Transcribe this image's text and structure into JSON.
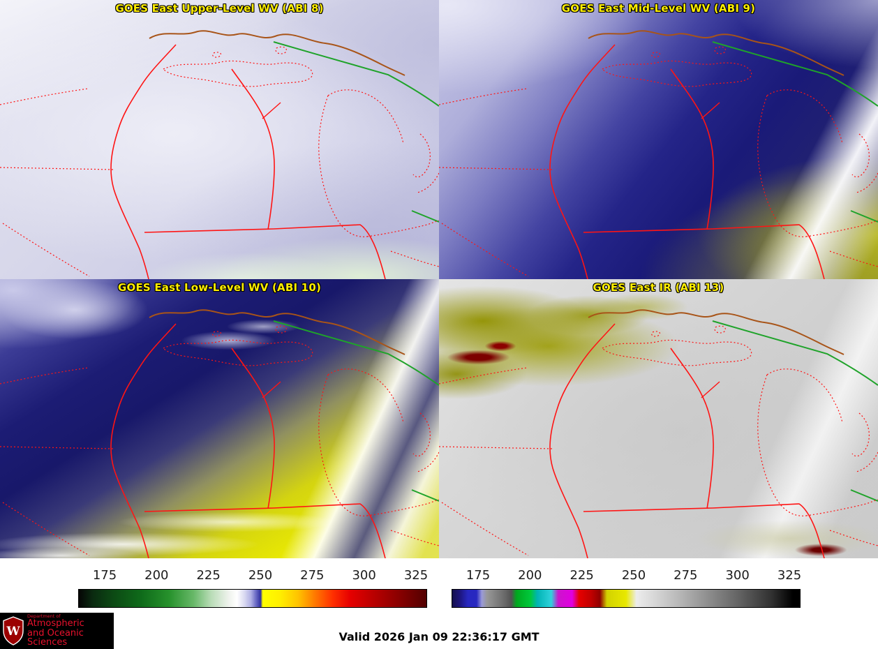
{
  "panels": [
    {
      "title": "GOES East Upper-Level WV (ABI 8)"
    },
    {
      "title": "GOES East Mid-Level WV (ABI 9)"
    },
    {
      "title": "GOES East Low-Level WV (ABI 10)"
    },
    {
      "title": "GOES East IR (ABI 13)"
    }
  ],
  "colorbars": {
    "wv": {
      "ticks": [
        "175",
        "200",
        "225",
        "250",
        "275",
        "300",
        "325"
      ]
    },
    "ir": {
      "ticks": [
        "175",
        "200",
        "225",
        "250",
        "275",
        "300",
        "325"
      ]
    }
  },
  "footer": {
    "valid_time": "Valid 2026 Jan 09 22:36:17 GMT",
    "logo": {
      "line1": "Department of",
      "line2": "Atmospheric",
      "line3": "and Oceanic Sciences",
      "crest_letter": "W"
    }
  },
  "colors": {
    "title_yellow": "#ffee00",
    "boundary_red": "#ff1414",
    "highway_green": "#1fa32a",
    "shoreline_brown": "#a85418",
    "logo_red": "#e8112d"
  }
}
